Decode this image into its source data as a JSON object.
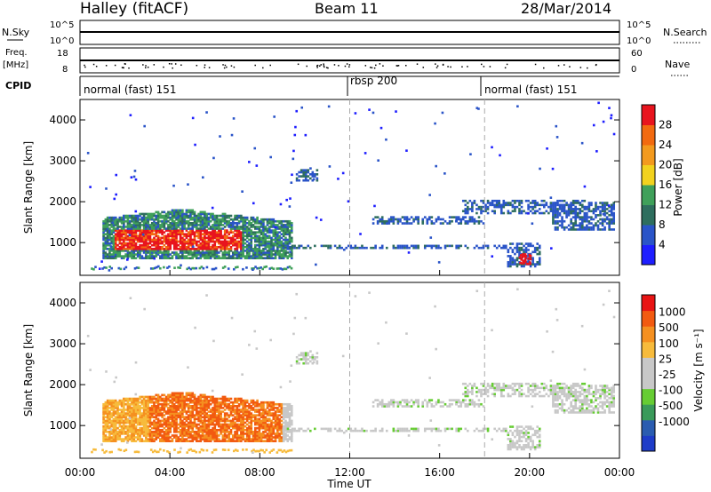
{
  "header": {
    "station": "Halley (fitACF)",
    "beam": "Beam 11",
    "date": "28/Mar/2014"
  },
  "strips": {
    "nsky": {
      "label": "N.Sky",
      "ticks": [
        "10^5",
        "10^0"
      ]
    },
    "nsearch": {
      "label": "N.Search",
      "ticks": [
        "10^5",
        "10^0"
      ]
    },
    "freq": {
      "label": "Freq.",
      "unit": "[MHz]",
      "ticks": [
        "18",
        "8"
      ]
    },
    "nave": {
      "label": "Nave",
      "ticks": [
        "60",
        "0"
      ]
    },
    "cpid": {
      "label": "CPID",
      "segments": [
        "normal (fast) 151",
        "rbsp 200",
        "normal (fast) 151"
      ]
    }
  },
  "colors": {
    "power": [
      "#1e1eff",
      "#2a54c8",
      "#2e6e5e",
      "#3fa05a",
      "#f2d21e",
      "#f39a1e",
      "#f26a10",
      "#e8141e"
    ],
    "velocity": [
      "#e81414",
      "#f25a10",
      "#f59020",
      "#f7bb3c",
      "#c8c8c8",
      "#c8c8c8",
      "#66cc33",
      "#3a9a5a",
      "#2a5cb0",
      "#1e3cc8"
    ]
  },
  "chart_data": [
    {
      "type": "heatmap",
      "name": "power",
      "ylabel": "Slant Range [km]",
      "ylim": [
        200,
        4500
      ],
      "yticks": [
        "1000",
        "2000",
        "3000",
        "4000"
      ],
      "xlim": [
        0,
        24
      ],
      "xticks": [
        "00:00",
        "04:00",
        "08:00",
        "12:00",
        "16:00",
        "20:00",
        "00:00"
      ],
      "colorbar": {
        "label": "Power [dB]",
        "ticks": [
          "4",
          "8",
          "12",
          "16",
          "20",
          "24",
          "28"
        ]
      }
    },
    {
      "type": "heatmap",
      "name": "velocity",
      "ylabel": "Slant Range [km]",
      "ylim": [
        200,
        4500
      ],
      "yticks": [
        "1000",
        "2000",
        "3000",
        "4000"
      ],
      "xlim": [
        0,
        24
      ],
      "xticks": [
        "00:00",
        "04:00",
        "08:00",
        "12:00",
        "16:00",
        "20:00",
        "00:00"
      ],
      "xlabel": "Time UT",
      "colorbar": {
        "label": "Velocity [m s⁻¹]",
        "ticks": [
          "1000",
          "500",
          "100",
          "25",
          "-25",
          "-100",
          "-500",
          "-1000"
        ]
      }
    }
  ]
}
